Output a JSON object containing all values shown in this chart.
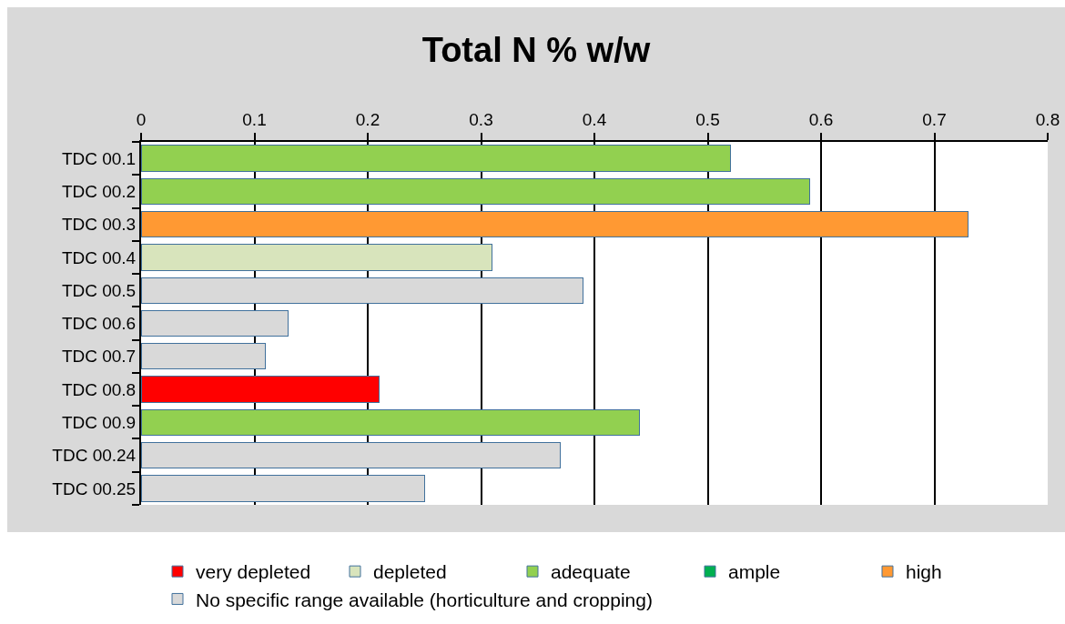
{
  "chart_data": {
    "type": "bar",
    "title": "Total N % w/w",
    "orientation": "horizontal",
    "stacked": true,
    "categories": [
      "TDC 00.1",
      "TDC 00.2",
      "TDC 00.3",
      "TDC 00.4",
      "TDC 00.5",
      "TDC 00.6",
      "TDC 00.7",
      "TDC 00.8",
      "TDC 00.9",
      "TDC 00.24",
      "TDC 00.25"
    ],
    "series": [
      {
        "name": "very depleted",
        "color": "#ff0000",
        "values": [
          null,
          null,
          null,
          null,
          null,
          null,
          null,
          0.21,
          null,
          null,
          null
        ]
      },
      {
        "name": "depleted",
        "color": "#d8e4bc",
        "values": [
          null,
          null,
          null,
          0.31,
          null,
          null,
          null,
          null,
          null,
          null,
          null
        ]
      },
      {
        "name": "adequate",
        "color": "#92d050",
        "values": [
          0.52,
          0.59,
          null,
          null,
          null,
          null,
          null,
          null,
          0.44,
          null,
          null
        ]
      },
      {
        "name": "ample",
        "color": "#00b050",
        "values": [
          null,
          null,
          null,
          null,
          null,
          null,
          null,
          null,
          null,
          null,
          null
        ]
      },
      {
        "name": "high",
        "color": "#ff9933",
        "values": [
          null,
          null,
          0.73,
          null,
          null,
          null,
          null,
          null,
          null,
          null,
          null
        ]
      },
      {
        "name": "No specific range available (horticulture and cropping)",
        "color": "#d9d9d9",
        "values": [
          null,
          null,
          null,
          null,
          0.39,
          0.13,
          0.11,
          null,
          null,
          0.37,
          0.25
        ]
      }
    ],
    "xlim": [
      0,
      0.8
    ],
    "xticks": [
      0,
      0.1,
      0.2,
      0.3,
      0.4,
      0.5,
      0.6,
      0.7,
      0.8
    ],
    "grid": "x",
    "legend": "bottom"
  }
}
